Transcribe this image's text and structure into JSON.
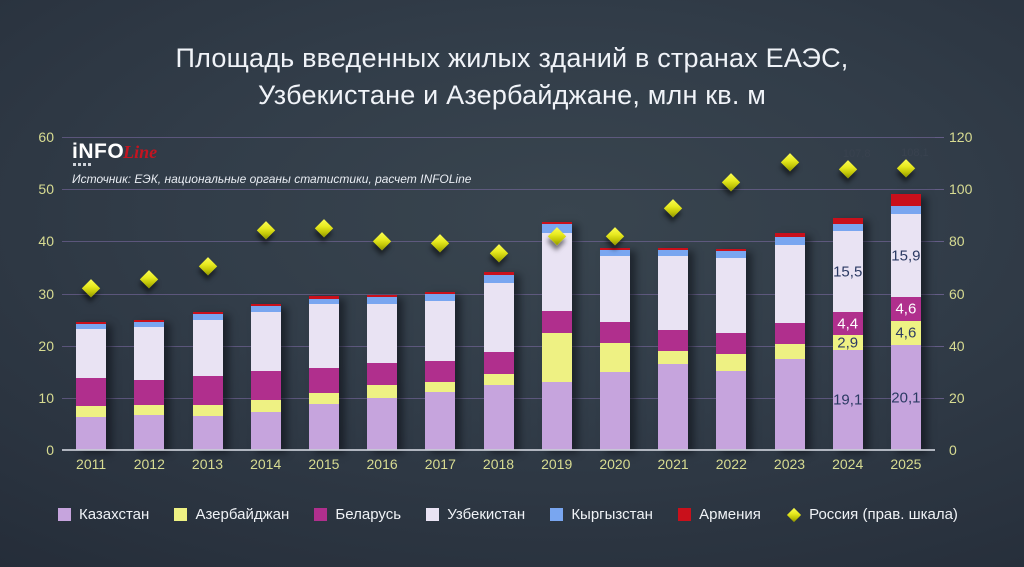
{
  "header": {
    "title_line1": "Площадь введенных жилых зданий в странах ЕАЭС,",
    "title_line2": "Узбекистане и Азербайджане, млн кв. м"
  },
  "branding": {
    "logo_part1": "iNFO",
    "logo_part2": "Line",
    "source": "Источник: ЕЭК, национальные органы статистики, расчет INFOLine"
  },
  "chart_data": {
    "type": "bar",
    "subtype": "stacked-bars-with-right-axis-diamond-markers",
    "title": "Площадь введенных жилых зданий в странах ЕАЭС, Узбекистане и Азербайджане, млн кв. м",
    "unit": "млн кв. м",
    "grid": true,
    "legend_position": "bottom",
    "categories": [
      "2011",
      "2012",
      "2013",
      "2014",
      "2015",
      "2016",
      "2017",
      "2018",
      "2019",
      "2020",
      "2021",
      "2022",
      "2023",
      "2024",
      "2025"
    ],
    "left_axis": {
      "min": 0,
      "max": 60,
      "ticks": [
        0,
        10,
        20,
        30,
        40,
        50,
        60
      ]
    },
    "right_axis": {
      "min": 0,
      "max": 120,
      "ticks": [
        0,
        20,
        40,
        60,
        80,
        100,
        120
      ]
    },
    "series": [
      {
        "key": "kazakhstan",
        "name": "Казахстан",
        "color": "#c6a4dd",
        "values": [
          6.4,
          6.7,
          6.5,
          7.3,
          8.8,
          10.0,
          11.1,
          12.5,
          13.0,
          15.0,
          16.5,
          15.2,
          17.4,
          19.1,
          20.1
        ]
      },
      {
        "key": "azerbaijan",
        "name": "Азербайджан",
        "color": "#eef183",
        "values": [
          2.0,
          1.9,
          2.1,
          2.3,
          2.1,
          2.4,
          1.9,
          2.1,
          9.5,
          5.5,
          2.4,
          3.2,
          2.9,
          2.9,
          4.6
        ]
      },
      {
        "key": "belarus",
        "name": "Беларусь",
        "color": "#b02f8d",
        "values": [
          5.5,
          4.8,
          5.5,
          5.5,
          4.8,
          4.2,
          4.0,
          4.1,
          4.1,
          4.0,
          4.2,
          4.0,
          4.1,
          4.4,
          4.6
        ]
      },
      {
        "key": "uzbekistan",
        "name": "Узбекистан",
        "color": "#e9e3f3",
        "values": [
          9.3,
          10.1,
          10.9,
          11.4,
          12.2,
          11.4,
          11.5,
          13.4,
          15.0,
          12.6,
          14.0,
          14.4,
          14.9,
          15.5,
          15.9
        ]
      },
      {
        "key": "kyrgyzstan",
        "name": "Кыргызстан",
        "color": "#79a6f0",
        "values": [
          0.9,
          0.95,
          1.0,
          1.15,
          1.1,
          1.3,
          1.5,
          1.5,
          1.7,
          1.2,
          1.2,
          1.3,
          1.6,
          1.4,
          1.6
        ]
      },
      {
        "key": "armenia",
        "name": "Армения",
        "color": "#c9101b",
        "values": [
          0.5,
          0.5,
          0.55,
          0.4,
          0.45,
          0.35,
          0.3,
          0.5,
          0.4,
          0.4,
          0.4,
          0.45,
          0.65,
          1.1,
          2.2
        ]
      }
    ],
    "marker_series": {
      "key": "russia",
      "name": "Россия (прав. шкала)",
      "axis": "right",
      "color": "#e6e82b",
      "values": [
        62.3,
        65.7,
        70.5,
        84.2,
        85.3,
        80.2,
        79.2,
        75.7,
        82.0,
        82.2,
        92.6,
        102.7,
        110.4,
        107.8,
        108.1
      ],
      "point_labels": {
        "2024": "107,8",
        "2025": "108,1"
      }
    },
    "bar_labels": {
      "2024": [
        {
          "series": "uzbekistan",
          "text": "15,5"
        },
        {
          "series": "belarus",
          "text": "4,4"
        },
        {
          "series": "azerbaijan",
          "text": "2,9"
        },
        {
          "series": "kazakhstan",
          "text": "19,1"
        }
      ],
      "2025": [
        {
          "series": "uzbekistan",
          "text": "15,9"
        },
        {
          "series": "belarus",
          "text": "4,6"
        },
        {
          "series": "azerbaijan",
          "text": "4,6"
        },
        {
          "series": "kazakhstan",
          "text": "20,1"
        }
      ]
    },
    "label_colors": {
      "on_light": "#2b3a63",
      "on_dark": "#ffffff",
      "marker_label": "#39424f"
    }
  }
}
